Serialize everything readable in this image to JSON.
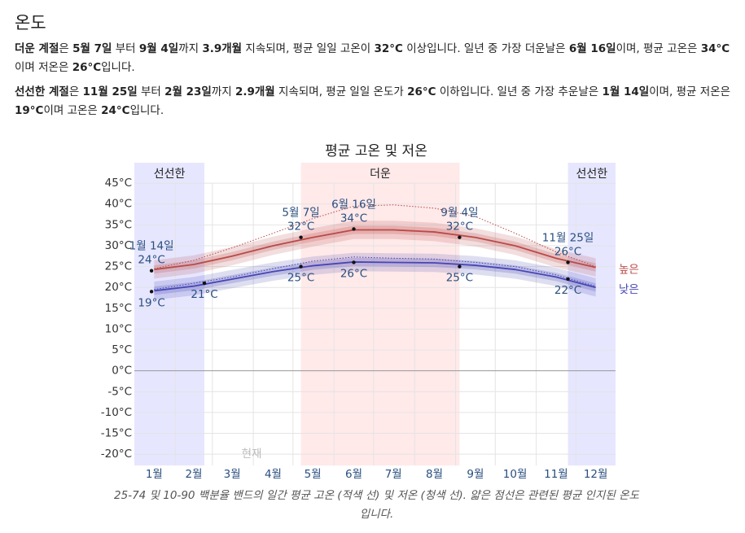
{
  "header": {
    "title": "온도"
  },
  "paragraphs": [
    {
      "runs": [
        {
          "text": "더운 계절",
          "bold": true
        },
        {
          "text": "은 "
        },
        {
          "text": "5월 7일",
          "bold": true
        },
        {
          "text": " 부터 "
        },
        {
          "text": "9월 4일",
          "bold": true
        },
        {
          "text": "까지 "
        },
        {
          "text": "3.9개월",
          "bold": true
        },
        {
          "text": " 지속되며, 평균 일일 고온이 "
        },
        {
          "text": "32°C",
          "bold": true
        },
        {
          "text": " 이상입니다. 일년 중 가장 더운날은 "
        },
        {
          "text": "6월 16일",
          "bold": true
        },
        {
          "text": "이며, 평균 고온은 "
        },
        {
          "text": "34°C",
          "bold": true
        },
        {
          "text": "이며 저온은 "
        },
        {
          "text": "26°C",
          "bold": true
        },
        {
          "text": "입니다."
        }
      ]
    },
    {
      "runs": [
        {
          "text": "선선한 계절",
          "bold": true
        },
        {
          "text": "은 "
        },
        {
          "text": "11월 25일",
          "bold": true
        },
        {
          "text": " 부터 "
        },
        {
          "text": "2월 23일",
          "bold": true
        },
        {
          "text": "까지 "
        },
        {
          "text": "2.9개월",
          "bold": true
        },
        {
          "text": " 지속되며, 평균 일일 온도가 "
        },
        {
          "text": "26°C",
          "bold": true
        },
        {
          "text": " 이하입니다. 일년 중 가장 추운날은 "
        },
        {
          "text": "1월 14일",
          "bold": true
        },
        {
          "text": "이며, 평균 저온은 "
        },
        {
          "text": "19°C",
          "bold": true
        },
        {
          "text": "이며 고온은 "
        },
        {
          "text": "24°C",
          "bold": true
        },
        {
          "text": "입니다."
        }
      ]
    }
  ],
  "chart_data": {
    "type": "line",
    "title": "평균 고온 및 저온",
    "caption": "25-74 및 10-90 백분율 밴드의 일간 평균 고온 (적색 선) 및 저온 (청색 선). 얇은 점선은 관련된 평균 인지된 온도입니다.",
    "now_label": "현재",
    "xlim": [
      1,
      365
    ],
    "xticks": [
      {
        "value": 16,
        "label": "1월"
      },
      {
        "value": 46,
        "label": "2월"
      },
      {
        "value": 75,
        "label": "3월"
      },
      {
        "value": 106,
        "label": "4월"
      },
      {
        "value": 136,
        "label": "5월"
      },
      {
        "value": 167,
        "label": "6월"
      },
      {
        "value": 197,
        "label": "7월"
      },
      {
        "value": 228,
        "label": "8월"
      },
      {
        "value": 259,
        "label": "9월"
      },
      {
        "value": 289,
        "label": "10월"
      },
      {
        "value": 320,
        "label": "11월"
      },
      {
        "value": 350,
        "label": "12월"
      }
    ],
    "xgrid": [
      32,
      60,
      91,
      121,
      152,
      182,
      213,
      244,
      274,
      305,
      335
    ],
    "ylim": [
      -22.7,
      49.9
    ],
    "yticks": [
      {
        "value": -20,
        "label": "-20°C"
      },
      {
        "value": -15,
        "label": "-15°C"
      },
      {
        "value": -10,
        "label": "-10°C"
      },
      {
        "value": -5,
        "label": "-5°C"
      },
      {
        "value": 0,
        "label": "0°C"
      },
      {
        "value": 5,
        "label": "5°C"
      },
      {
        "value": 10,
        "label": "10°C"
      },
      {
        "value": 15,
        "label": "15°C"
      },
      {
        "value": 20,
        "label": "20°C"
      },
      {
        "value": 25,
        "label": "25°C"
      },
      {
        "value": 30,
        "label": "30°C"
      },
      {
        "value": 35,
        "label": "35°C"
      },
      {
        "value": 40,
        "label": "40°C"
      },
      {
        "value": 45,
        "label": "45°C"
      }
    ],
    "grid": true,
    "seasons": [
      {
        "label": "선선한",
        "start": 1,
        "end": 54,
        "color": "#c8c8ff"
      },
      {
        "label": "더운",
        "start": 127,
        "end": 247,
        "color": "#ffcfcf"
      },
      {
        "label": "선선한",
        "start": 329,
        "end": 365,
        "color": "#c8c8ff"
      }
    ],
    "x": [
      16,
      46,
      75,
      106,
      136,
      167,
      197,
      228,
      259,
      289,
      320,
      350
    ],
    "series": [
      {
        "name": "높은",
        "color": "#b94a48",
        "values": [
          24.3,
          25.5,
          27.5,
          30,
          32,
          33.8,
          33.8,
          33.3,
          32,
          30,
          27,
          24.8
        ],
        "p10": [
          22.1,
          23.3,
          25.3,
          27.8,
          29.8,
          31.6,
          31.6,
          31.1,
          29.8,
          27.8,
          24.8,
          22.6
        ],
        "p25": [
          23.3,
          24.5,
          26.5,
          29,
          31,
          32.8,
          32.8,
          32.3,
          31,
          29,
          26,
          23.8
        ],
        "p75": [
          25.3,
          26.5,
          28.5,
          31,
          33,
          34.8,
          34.8,
          34.3,
          33,
          31,
          28,
          25.8
        ],
        "p90": [
          26.5,
          27.7,
          29.7,
          32.2,
          34.2,
          36,
          36,
          35.5,
          34.2,
          32.2,
          29.2,
          27
        ],
        "perceived": [
          24.5,
          26.5,
          29.5,
          33,
          36.5,
          39.5,
          39.8,
          39,
          37,
          33,
          28.5,
          25
        ]
      },
      {
        "name": "낮은",
        "color": "#4646b4",
        "values": [
          19.2,
          20.3,
          22,
          23.8,
          25.2,
          26.1,
          26,
          25.9,
          25.3,
          24.3,
          22.5,
          20
        ],
        "p10": [
          17,
          18.1,
          19.8,
          21.6,
          23,
          23.9,
          23.8,
          23.7,
          23.1,
          22.1,
          20.3,
          17.8
        ],
        "p25": [
          18.2,
          19.3,
          21,
          22.8,
          24.2,
          25.1,
          25,
          24.9,
          24.3,
          23.3,
          21.5,
          19
        ],
        "p75": [
          20.2,
          21.3,
          23,
          24.8,
          26.2,
          27.1,
          27,
          26.9,
          26.3,
          25.3,
          23.5,
          21
        ],
        "p90": [
          21.4,
          22.5,
          24.2,
          26,
          27.4,
          28.3,
          28.2,
          28.1,
          27.5,
          26.5,
          24.7,
          22.2
        ],
        "perceived": [
          19.5,
          21,
          22.5,
          24.5,
          26.3,
          27.3,
          27,
          26.8,
          26,
          25,
          23,
          20.3
        ]
      }
    ],
    "annotations": [
      {
        "x": 14,
        "value": 24,
        "value_label": "24°C",
        "date_label": "1월 14일",
        "place": "above"
      },
      {
        "x": 127,
        "value": 32,
        "value_label": "32°C",
        "date_label": "5월 7일",
        "place": "above"
      },
      {
        "x": 167,
        "value": 34,
        "value_label": "34°C",
        "date_label": "6월 16일",
        "place": "above"
      },
      {
        "x": 247,
        "value": 32,
        "value_label": "32°C",
        "date_label": "9월 4일",
        "place": "above"
      },
      {
        "x": 329,
        "value": 26,
        "value_label": "26°C",
        "date_label": "11월 25일",
        "place": "above"
      },
      {
        "x": 14,
        "value": 19,
        "value_label": "19°C",
        "place": "below"
      },
      {
        "x": 54,
        "value": 21,
        "value_label": "21°C",
        "place": "below"
      },
      {
        "x": 127,
        "value": 25,
        "value_label": "25°C",
        "place": "below"
      },
      {
        "x": 167,
        "value": 26,
        "value_label": "26°C",
        "place": "below"
      },
      {
        "x": 247,
        "value": 25,
        "value_label": "25°C",
        "place": "below"
      },
      {
        "x": 329,
        "value": 22,
        "value_label": "22°C",
        "place": "below"
      }
    ]
  }
}
